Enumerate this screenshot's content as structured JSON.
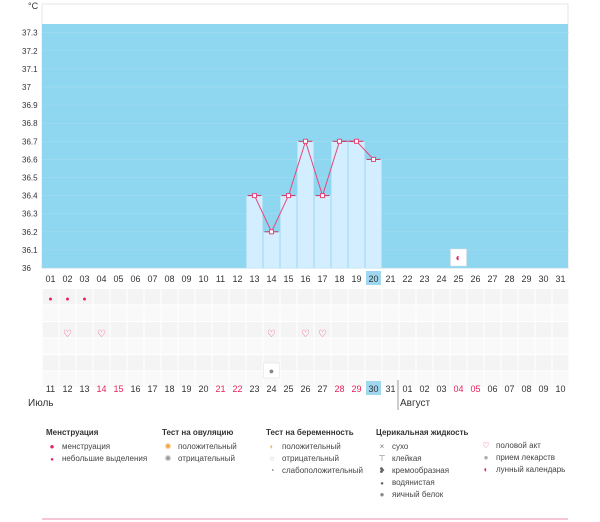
{
  "chart_data": {
    "type": "bar+line",
    "unit_label": "°C",
    "y_ticks": [
      "37.3",
      "37.2",
      "37.1",
      "37",
      "36.9",
      "36.8",
      "36.7",
      "36.6",
      "36.5",
      "36.4",
      "36.3",
      "36.2",
      "36.1",
      "36"
    ],
    "ylim": [
      36,
      37.4
    ],
    "cycle_days": [
      "01",
      "02",
      "03",
      "04",
      "05",
      "06",
      "07",
      "08",
      "09",
      "10",
      "11",
      "12",
      "13",
      "14",
      "15",
      "16",
      "17",
      "18",
      "19",
      "20",
      "21",
      "22",
      "23",
      "24",
      "25",
      "26",
      "27",
      "28",
      "29",
      "30",
      "31"
    ],
    "dates": [
      "11",
      "12",
      "13",
      "14",
      "15",
      "16",
      "17",
      "18",
      "19",
      "20",
      "21",
      "22",
      "23",
      "24",
      "25",
      "26",
      "27",
      "28",
      "29",
      "30",
      "31",
      "01",
      "02",
      "03",
      "04",
      "05",
      "06",
      "07",
      "08",
      "09",
      "10"
    ],
    "weekend_dates_index": [
      3,
      4,
      10,
      11,
      17,
      18,
      24,
      25
    ],
    "highlight_index": 19,
    "temperatures": [
      {
        "day": 13,
        "value": 36.4
      },
      {
        "day": 14,
        "value": 36.2
      },
      {
        "day": 15,
        "value": 36.4
      },
      {
        "day": 16,
        "value": 36.7
      },
      {
        "day": 17,
        "value": 36.4
      },
      {
        "day": 18,
        "value": 36.7
      },
      {
        "day": 19,
        "value": 36.7
      },
      {
        "day": 20,
        "value": 36.6
      }
    ],
    "lunar_calendar_day": 25,
    "menstruation_days": [
      1,
      2,
      3
    ],
    "intercourse_days": [
      2,
      4,
      14,
      16,
      17
    ],
    "egg_white_days": [
      14
    ],
    "months": {
      "first": "Июль",
      "second": "Август"
    }
  },
  "legend": {
    "menstruation": {
      "title": "Менструация",
      "items": [
        {
          "icon": "drop-icon",
          "label": "менструация"
        },
        {
          "icon": "small-drop-icon",
          "label": "небольшие выделения"
        }
      ]
    },
    "ovulation": {
      "title": "Тест на овуляцию",
      "items": [
        {
          "icon": "sun-positive-icon",
          "label": "положительный"
        },
        {
          "icon": "sun-negative-icon",
          "label": "отрицательный"
        }
      ]
    },
    "pregnancy": {
      "title": "Тест на беременность",
      "items": [
        {
          "icon": "pregnancy-positive-icon",
          "label": "положительный"
        },
        {
          "icon": "pregnancy-negative-icon",
          "label": "отрицательный"
        },
        {
          "icon": "pregnancy-weak-icon",
          "label": "слабоположительный"
        }
      ]
    },
    "mucus": {
      "title": "Церикальная жидкость",
      "items": [
        {
          "icon": "cross-icon",
          "label": "сухо"
        },
        {
          "icon": "sticky-icon",
          "label": "клейкая"
        },
        {
          "icon": "creamy-icon",
          "label": "кремообразная"
        },
        {
          "icon": "watery-icon",
          "label": "водянистая"
        },
        {
          "icon": "egg-white-icon",
          "label": "яичный белок"
        }
      ]
    },
    "other": {
      "title": "",
      "items": [
        {
          "icon": "heart-icon",
          "label": "половой акт"
        },
        {
          "icon": "pill-icon",
          "label": "прием лекарств"
        },
        {
          "icon": "moon-icon",
          "label": "лунный календарь"
        }
      ]
    }
  },
  "colors": {
    "bg_blue": "#8fd6f0",
    "bar": "#d3efff",
    "bar_stroke": "#bde3f7",
    "line": "#e8477a",
    "weekend": "#e8225a",
    "highlight": "#9fd6f0"
  }
}
